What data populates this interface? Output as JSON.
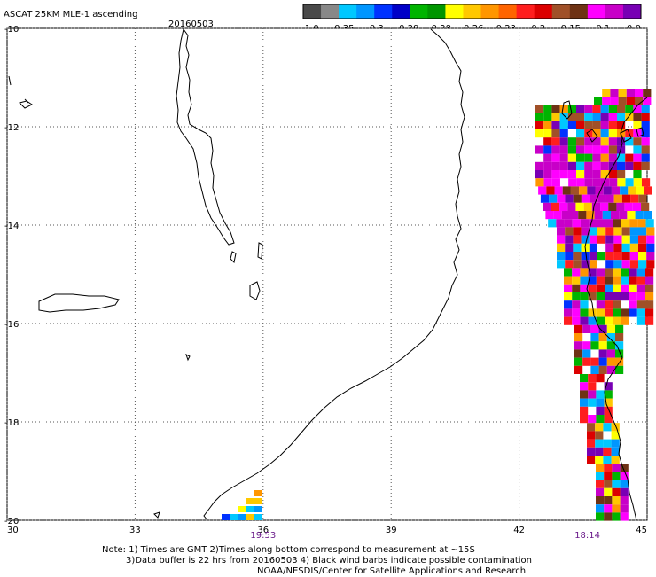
{
  "header": {
    "title": "ASCAT 25KM MLE-1 ascending",
    "date": "20160503"
  },
  "colorbar": {
    "colors": [
      "#4a4a4a",
      "#888888",
      "#00c8ff",
      "#0096ff",
      "#0032ff",
      "#0000c8",
      "#00b400",
      "#009600",
      "#ffff00",
      "#ffc800",
      "#ff9600",
      "#ff6400",
      "#ff1e1e",
      "#dc0000",
      "#a05028",
      "#6e3214",
      "#ff00ff",
      "#c800c8",
      "#7800b4"
    ],
    "labels": [
      "-1.0",
      "-0.35",
      "-0.3",
      "-0.29",
      "-0.28",
      "-0.26",
      "-0.23",
      "-0.2",
      "-0.15",
      "-0.1",
      "0.0"
    ]
  },
  "map": {
    "lat_ticks": [
      "-10",
      "-12",
      "-14",
      "-16",
      "-18",
      "-20"
    ],
    "lon_ticks": [
      "30",
      "33",
      "36",
      "39",
      "42",
      "45"
    ],
    "lat_range": [
      -20,
      -10
    ],
    "lon_range": [
      30,
      45
    ],
    "pass_times": [
      {
        "lon": 36.0,
        "label": "19:53"
      },
      {
        "lon": 43.6,
        "label": "18:14"
      }
    ]
  },
  "notes": {
    "line1": "Note: 1) Times are GMT 2)Times along bottom correspond to measurement at ~15S",
    "line2": "3)Data buffer is 22 hrs from 20160503 4) Black wind barbs indicate possible contamination",
    "line3": "NOAA/NESDIS/Center for Satellite Applications and Research"
  }
}
